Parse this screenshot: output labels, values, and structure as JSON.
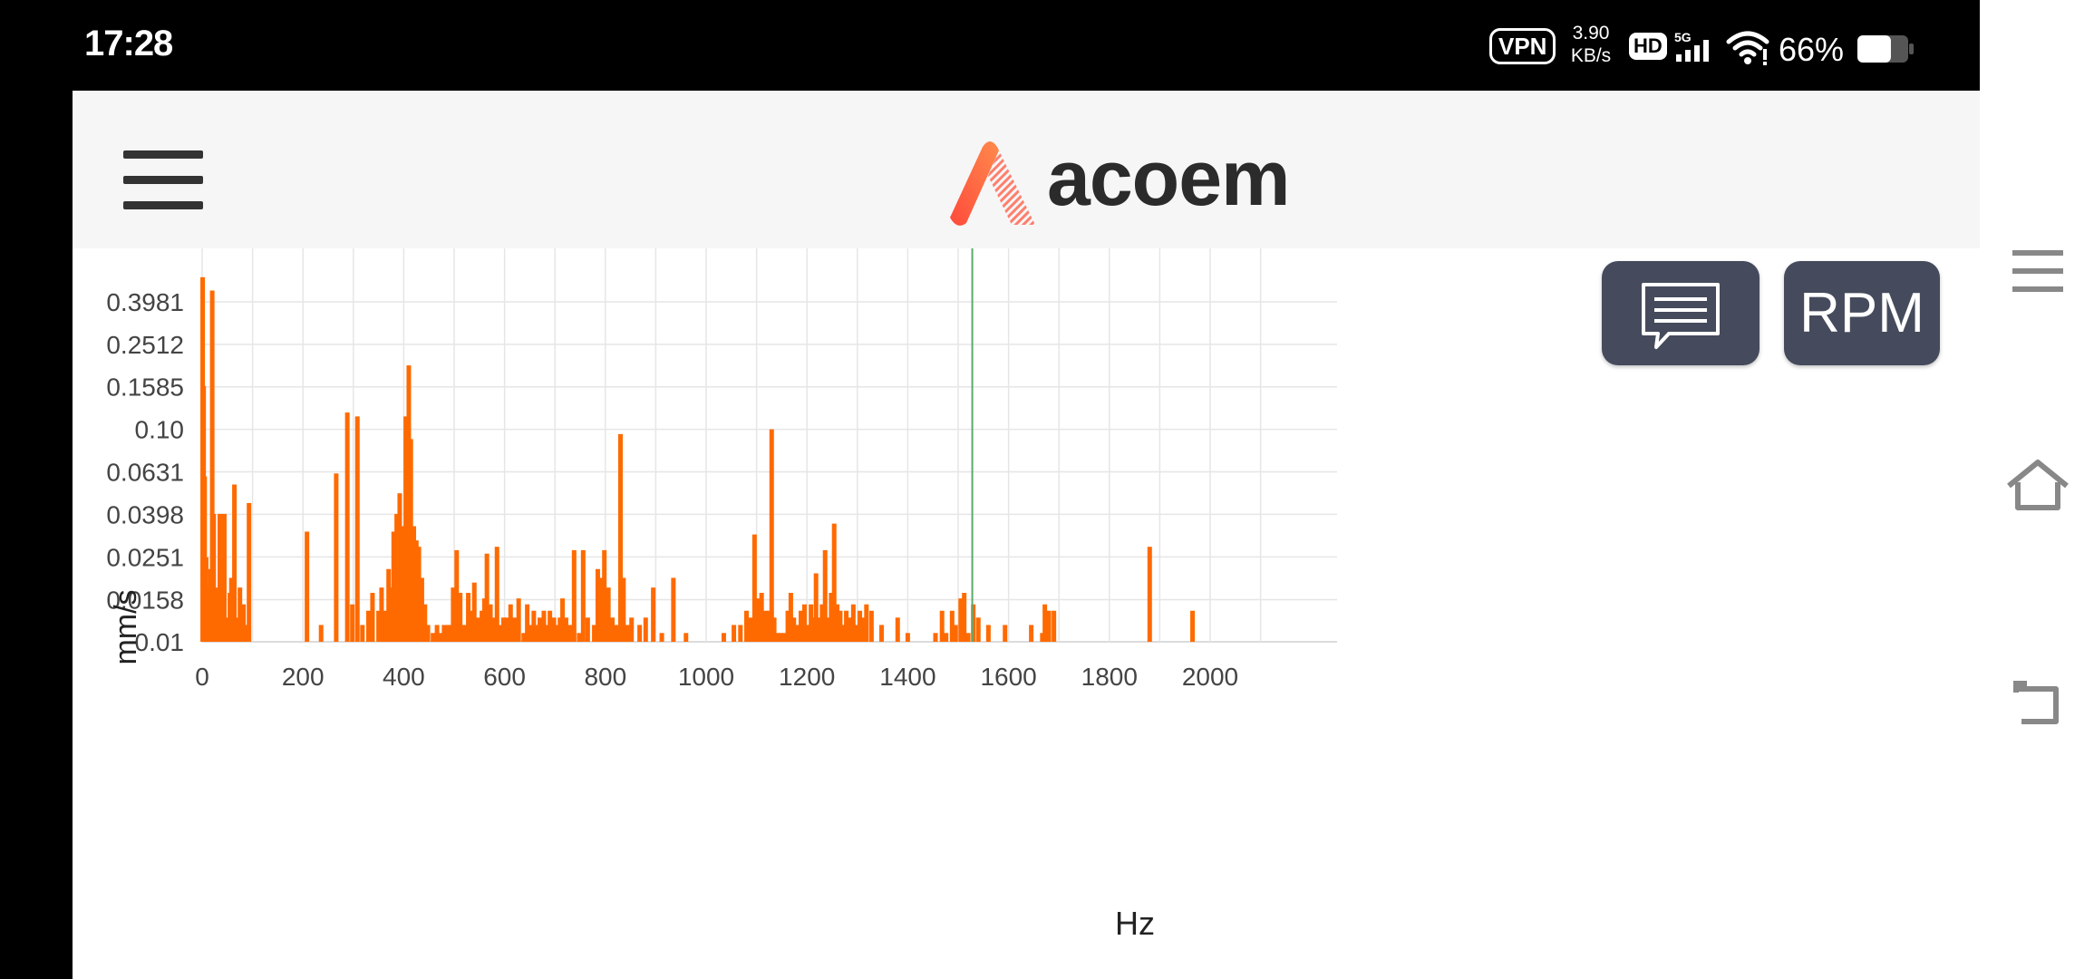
{
  "status_bar": {
    "time": "17:28",
    "vpn": "VPN",
    "net_speed_value": "3.90",
    "net_speed_unit": "KB/s",
    "hd": "HD",
    "network": "5G",
    "battery_percent": "66%",
    "battery_level": 0.66
  },
  "header": {
    "logo_text": "acoem"
  },
  "buttons": {
    "rpm_label": "RPM"
  },
  "colors": {
    "series_line": "#ff6a00",
    "series_fill": "#ffa46e",
    "cursor_line": "#5aaa6a",
    "grid": "#e6e6e6",
    "button_bg": "#454b5c",
    "logo_accent": "#ff5a3c"
  },
  "chart_data": {
    "type": "area",
    "xlabel": "Hz",
    "ylabel": "mm/s",
    "y_scale": "log",
    "xlim": [
      0,
      2100
    ],
    "ylim": [
      0.01,
      0.52
    ],
    "x_ticks": [
      0,
      200,
      400,
      600,
      800,
      1000,
      1200,
      1400,
      1600,
      1800,
      2000
    ],
    "y_ticks": [
      0.01,
      0.0158,
      0.0251,
      0.0398,
      0.0631,
      0.1,
      0.1585,
      0.2512,
      0.3981
    ],
    "y_tick_labels": [
      "0.01",
      "0.0158",
      "0.0251",
      "0.0398",
      "0.0631",
      "0.10",
      "0.1585",
      "0.2512",
      "0.3981"
    ],
    "grid": true,
    "cursor_x": 1528,
    "series": [
      {
        "peaks": [
          [
            1,
            0.52
          ],
          [
            3,
            0.16
          ],
          [
            5,
            0.06
          ],
          [
            8,
            0.025
          ],
          [
            11,
            0.018
          ],
          [
            14,
            0.012
          ],
          [
            17,
            0.022
          ],
          [
            20,
            0.45
          ],
          [
            23,
            0.04
          ],
          [
            27,
            0.018
          ],
          [
            30,
            0.012
          ],
          [
            35,
            0.04
          ],
          [
            40,
            0.02
          ],
          [
            44,
            0.04
          ],
          [
            48,
            0.013
          ],
          [
            55,
            0.017
          ],
          [
            58,
            0.02
          ],
          [
            64,
            0.055
          ],
          [
            70,
            0.013
          ],
          [
            75,
            0.018
          ],
          [
            82,
            0.015
          ],
          [
            87,
            0.012
          ],
          [
            93,
            0.045
          ],
          [
            208,
            0.033
          ],
          [
            236,
            0.012
          ],
          [
            266,
            0.062
          ],
          [
            288,
            0.12
          ],
          [
            298,
            0.015
          ],
          [
            308,
            0.115
          ],
          [
            318,
            0.012
          ],
          [
            330,
            0.014
          ],
          [
            338,
            0.017
          ],
          [
            350,
            0.014
          ],
          [
            356,
            0.018
          ],
          [
            362,
            0.014
          ],
          [
            370,
            0.022
          ],
          [
            376,
            0.018
          ],
          [
            380,
            0.033
          ],
          [
            386,
            0.04
          ],
          [
            392,
            0.05
          ],
          [
            398,
            0.035
          ],
          [
            404,
            0.115
          ],
          [
            410,
            0.2
          ],
          [
            414,
            0.09
          ],
          [
            420,
            0.035
          ],
          [
            425,
            0.03
          ],
          [
            430,
            0.028
          ],
          [
            436,
            0.02
          ],
          [
            442,
            0.015
          ],
          [
            448,
            0.012
          ],
          [
            458,
            0.011
          ],
          [
            466,
            0.012
          ],
          [
            474,
            0.011
          ],
          [
            480,
            0.012
          ],
          [
            488,
            0.012
          ],
          [
            493,
            0.012
          ],
          [
            498,
            0.018
          ],
          [
            505,
            0.027
          ],
          [
            512,
            0.017
          ],
          [
            520,
            0.012
          ],
          [
            528,
            0.017
          ],
          [
            535,
            0.014
          ],
          [
            540,
            0.019
          ],
          [
            548,
            0.013
          ],
          [
            555,
            0.014
          ],
          [
            560,
            0.016
          ],
          [
            565,
            0.026
          ],
          [
            572,
            0.015
          ],
          [
            578,
            0.013
          ],
          [
            585,
            0.028
          ],
          [
            592,
            0.012
          ],
          [
            598,
            0.013
          ],
          [
            604,
            0.013
          ],
          [
            612,
            0.015
          ],
          [
            620,
            0.013
          ],
          [
            628,
            0.016
          ],
          [
            638,
            0.011
          ],
          [
            645,
            0.015
          ],
          [
            652,
            0.012
          ],
          [
            658,
            0.014
          ],
          [
            664,
            0.012
          ],
          [
            670,
            0.013
          ],
          [
            678,
            0.014
          ],
          [
            684,
            0.012
          ],
          [
            690,
            0.014
          ],
          [
            698,
            0.013
          ],
          [
            704,
            0.012
          ],
          [
            710,
            0.013
          ],
          [
            715,
            0.016
          ],
          [
            722,
            0.013
          ],
          [
            730,
            0.012
          ],
          [
            738,
            0.027
          ],
          [
            748,
            0.011
          ],
          [
            756,
            0.027
          ],
          [
            765,
            0.013
          ],
          [
            778,
            0.012
          ],
          [
            785,
            0.022
          ],
          [
            792,
            0.02
          ],
          [
            798,
            0.027
          ],
          [
            806,
            0.018
          ],
          [
            814,
            0.013
          ],
          [
            822,
            0.012
          ],
          [
            830,
            0.095
          ],
          [
            836,
            0.02
          ],
          [
            844,
            0.012
          ],
          [
            852,
            0.013
          ],
          [
            868,
            0.012
          ],
          [
            880,
            0.013
          ],
          [
            895,
            0.018
          ],
          [
            912,
            0.011
          ],
          [
            935,
            0.02
          ],
          [
            960,
            0.011
          ],
          [
            1005,
            0.01
          ],
          [
            1035,
            0.011
          ],
          [
            1055,
            0.012
          ],
          [
            1068,
            0.012
          ],
          [
            1080,
            0.014
          ],
          [
            1088,
            0.013
          ],
          [
            1096,
            0.032
          ],
          [
            1104,
            0.016
          ],
          [
            1110,
            0.017
          ],
          [
            1118,
            0.014
          ],
          [
            1124,
            0.014
          ],
          [
            1130,
            0.1
          ],
          [
            1135,
            0.013
          ],
          [
            1142,
            0.011
          ],
          [
            1148,
            0.011
          ],
          [
            1155,
            0.011
          ],
          [
            1162,
            0.014
          ],
          [
            1168,
            0.017
          ],
          [
            1174,
            0.013
          ],
          [
            1180,
            0.012
          ],
          [
            1188,
            0.014
          ],
          [
            1195,
            0.015
          ],
          [
            1202,
            0.012
          ],
          [
            1208,
            0.015
          ],
          [
            1213,
            0.013
          ],
          [
            1218,
            0.021
          ],
          [
            1224,
            0.013
          ],
          [
            1230,
            0.015
          ],
          [
            1236,
            0.027
          ],
          [
            1242,
            0.013
          ],
          [
            1248,
            0.017
          ],
          [
            1254,
            0.036
          ],
          [
            1260,
            0.015
          ],
          [
            1266,
            0.014
          ],
          [
            1272,
            0.012
          ],
          [
            1278,
            0.014
          ],
          [
            1285,
            0.013
          ],
          [
            1292,
            0.015
          ],
          [
            1298,
            0.012
          ],
          [
            1305,
            0.014
          ],
          [
            1312,
            0.013
          ],
          [
            1318,
            0.015
          ],
          [
            1328,
            0.014
          ],
          [
            1348,
            0.012
          ],
          [
            1380,
            0.013
          ],
          [
            1400,
            0.011
          ],
          [
            1420,
            0.01
          ],
          [
            1435,
            0.01
          ],
          [
            1455,
            0.011
          ],
          [
            1468,
            0.014
          ],
          [
            1476,
            0.011
          ],
          [
            1488,
            0.014
          ],
          [
            1495,
            0.012
          ],
          [
            1505,
            0.016
          ],
          [
            1512,
            0.017
          ],
          [
            1520,
            0.011
          ],
          [
            1530,
            0.015
          ],
          [
            1540,
            0.013
          ],
          [
            1560,
            0.012
          ],
          [
            1593,
            0.012
          ],
          [
            1645,
            0.012
          ],
          [
            1667,
            0.011
          ],
          [
            1672,
            0.015
          ],
          [
            1680,
            0.014
          ],
          [
            1690,
            0.014
          ],
          [
            1865,
            0.01
          ],
          [
            1880,
            0.028
          ],
          [
            1965,
            0.014
          ]
        ]
      }
    ]
  }
}
